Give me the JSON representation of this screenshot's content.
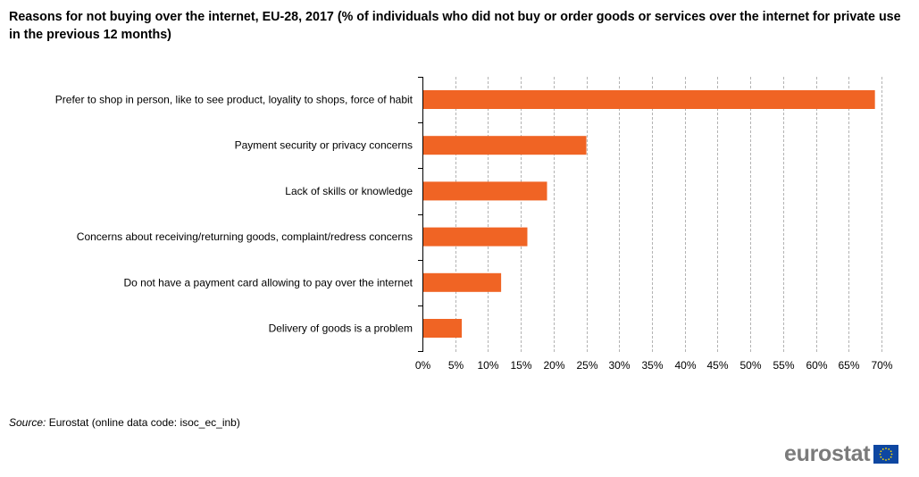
{
  "title": "Reasons for not buying over the internet, EU-28, 2017 (% of individuals who did not buy or order goods or services over the internet for private use in the previous 12 months)",
  "source": {
    "label": "Source:",
    "text": "Eurostat (online data code: isoc_ec_inb)"
  },
  "logo": {
    "text": "eurostat",
    "flag_color": "#0e47a1",
    "star_color": "#ffdd00"
  },
  "colors": {
    "bar": "#f06424",
    "grid": "#b3b3b3",
    "axis": "#000000"
  },
  "chart_data": {
    "type": "bar",
    "orientation": "horizontal",
    "title": "Reasons for not buying over the internet, EU-28, 2017 (% of individuals who did not buy or order goods or services over the internet for private use in the previous 12 months)",
    "categories": [
      "Prefer to shop in person, like to see product, loyality to shops, force of habit",
      "Payment security or privacy concerns",
      "Lack of skills or knowledge",
      "Concerns about receiving/returning goods, complaint/redress concerns",
      "Do not have a payment card allowing to pay over the internet",
      "Delivery of goods is a problem"
    ],
    "values": [
      69,
      25,
      19,
      16,
      12,
      6
    ],
    "xlim": [
      0,
      70
    ],
    "ticks": [
      "0%",
      "5%",
      "10%",
      "15%",
      "20%",
      "25%",
      "30%",
      "35%",
      "40%",
      "45%",
      "50%",
      "55%",
      "60%",
      "65%",
      "70%"
    ],
    "tick_values": [
      0,
      5,
      10,
      15,
      20,
      25,
      30,
      35,
      40,
      45,
      50,
      55,
      60,
      65,
      70
    ],
    "grid": "vertical dashed",
    "legend": "none"
  }
}
